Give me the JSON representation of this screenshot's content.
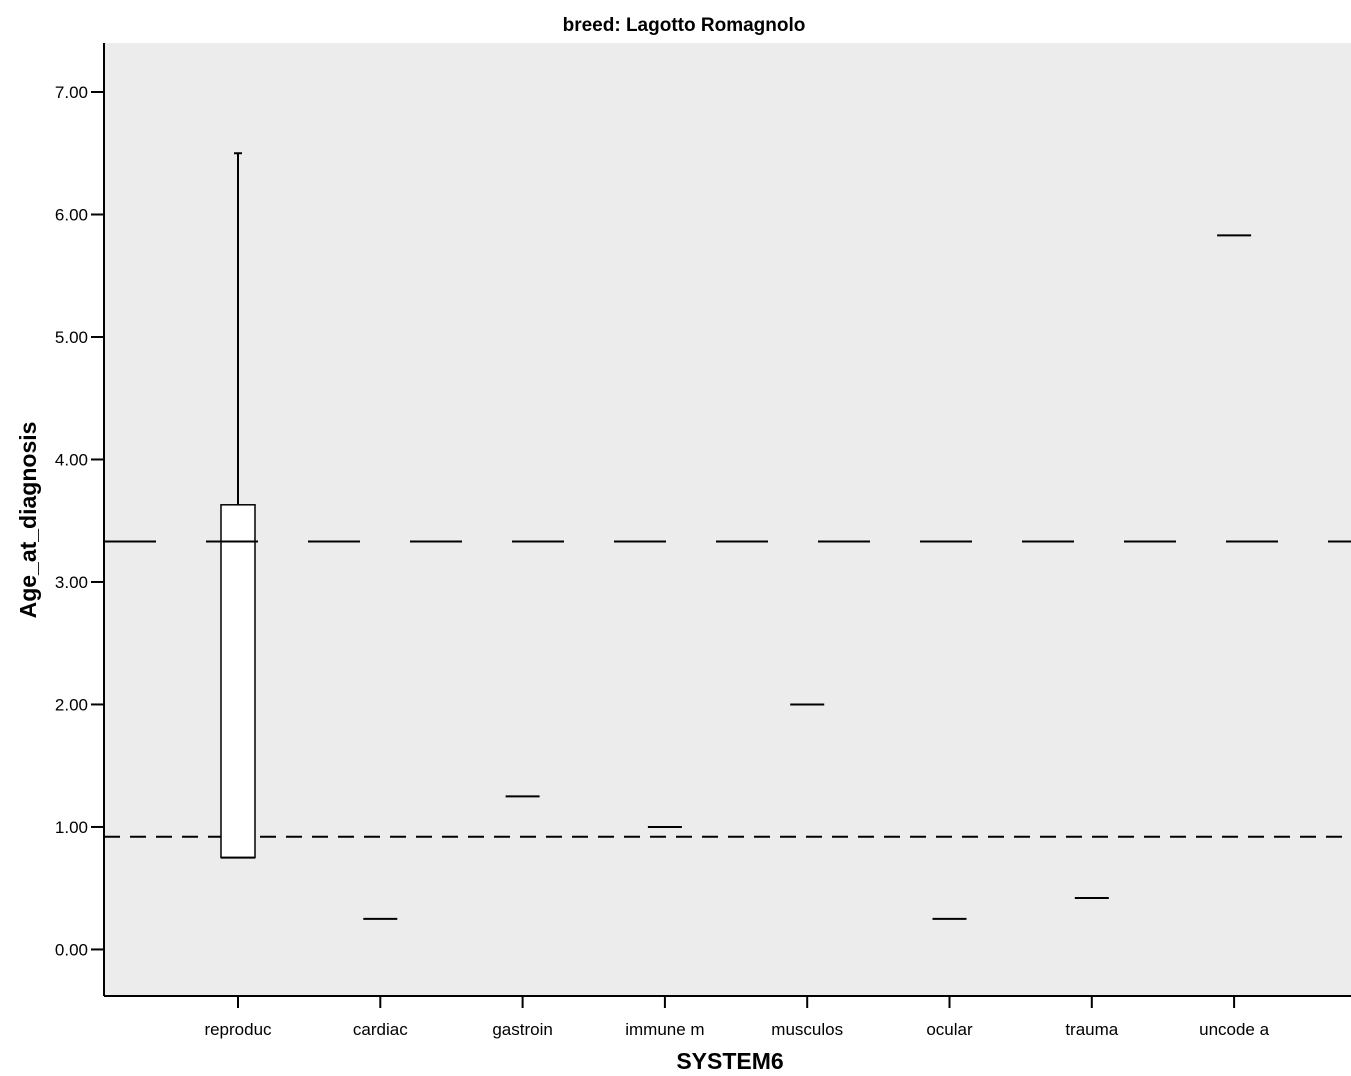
{
  "chart_data": {
    "type": "box",
    "title": "breed: Lagotto Romagnolo",
    "xlabel": "SYSTEM6",
    "ylabel": "Age_at_diagnosis",
    "ylim": [
      -0.38,
      7.4
    ],
    "yticks": [
      "0.00",
      "1.00",
      "2.00",
      "3.00",
      "4.00",
      "5.00",
      "6.00",
      "7.00"
    ],
    "ytick_values": [
      0,
      1,
      2,
      3,
      4,
      5,
      6,
      7
    ],
    "grid": false,
    "background": "#ececec",
    "categories": [
      "reproduc",
      "cardiac",
      "gastroin",
      "immune m",
      "musculos",
      "ocular",
      "trauma",
      "uncode a"
    ],
    "boxes": [
      {
        "category": "reproduc",
        "min": 0.75,
        "q1": 0.75,
        "median": 3.33,
        "q3": 3.63,
        "max": 6.5
      },
      {
        "category": "cardiac",
        "min": 0.25,
        "q1": 0.25,
        "median": 0.25,
        "q3": 0.25,
        "max": 0.25
      },
      {
        "category": "gastroin",
        "min": 1.25,
        "q1": 1.25,
        "median": 1.25,
        "q3": 1.25,
        "max": 1.25
      },
      {
        "category": "immune m",
        "min": 1.0,
        "q1": 1.0,
        "median": 1.0,
        "q3": 1.0,
        "max": 1.0
      },
      {
        "category": "musculos",
        "min": 2.0,
        "q1": 2.0,
        "median": 2.0,
        "q3": 2.0,
        "max": 2.0
      },
      {
        "category": "ocular",
        "min": 0.25,
        "q1": 0.25,
        "median": 0.25,
        "q3": 0.25,
        "max": 0.25
      },
      {
        "category": "trauma",
        "min": 0.42,
        "q1": 0.42,
        "median": 0.42,
        "q3": 0.42,
        "max": 0.42
      },
      {
        "category": "uncode a",
        "min": 5.83,
        "q1": 5.83,
        "median": 5.83,
        "q3": 5.83,
        "max": 5.83
      }
    ],
    "reference_lines": [
      {
        "value": 3.33,
        "style": "long-dash"
      },
      {
        "value": 0.92,
        "style": "short-dash"
      }
    ]
  }
}
